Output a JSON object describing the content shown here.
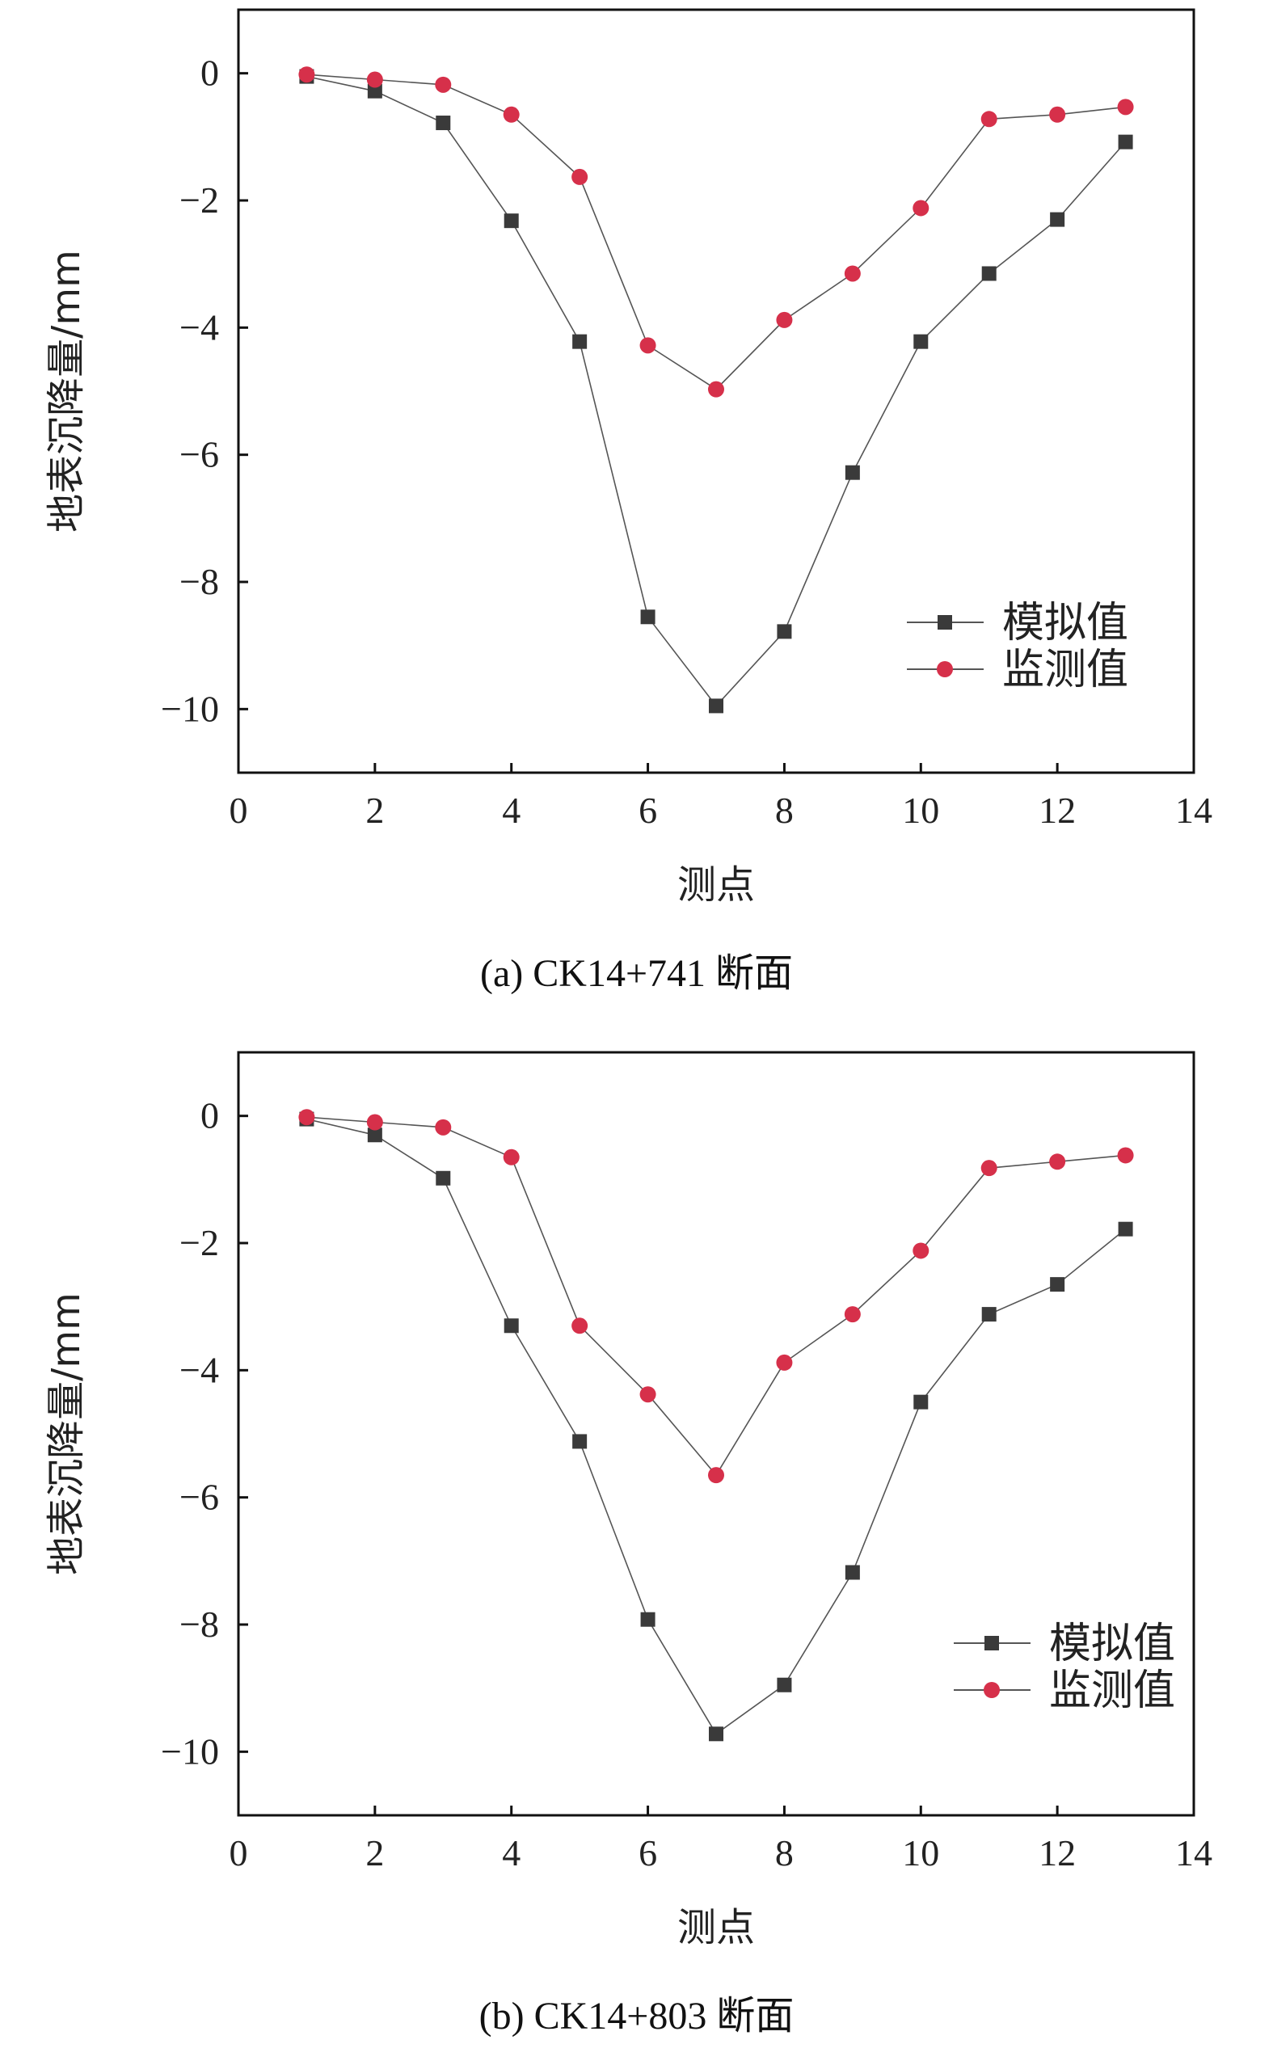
{
  "chart_data": [
    {
      "type": "line",
      "caption": "(a) CK14+741 断面",
      "xlabel": "测点",
      "ylabel": "地表沉降量/mm",
      "xlim": [
        0,
        14
      ],
      "ylim": [
        -11,
        1
      ],
      "xticks": [
        0,
        2,
        4,
        6,
        8,
        10,
        12,
        14
      ],
      "yticks": [
        0,
        -2,
        -4,
        -6,
        -8,
        -10
      ],
      "ytick_labels": [
        "0",
        "−2",
        "−4",
        "−6",
        "−8",
        "−10"
      ],
      "grid": false,
      "legend_position": "bottom-right",
      "x": [
        1,
        2,
        3,
        4,
        5,
        6,
        7,
        8,
        9,
        10,
        11,
        12,
        13
      ],
      "series": [
        {
          "name": "模拟值",
          "marker": "square",
          "color": "#3a3a3a",
          "values": [
            -0.05,
            -0.28,
            -0.78,
            -2.32,
            -4.22,
            -8.55,
            -9.95,
            -8.78,
            -6.28,
            -4.22,
            -3.15,
            -2.3,
            -1.08
          ]
        },
        {
          "name": "监测值",
          "marker": "circle",
          "color": "#d6304a",
          "values": [
            -0.02,
            -0.1,
            -0.18,
            -0.65,
            -1.63,
            -4.28,
            -4.97,
            -3.88,
            -3.15,
            -2.12,
            -0.72,
            -0.65,
            -0.53
          ]
        }
      ]
    },
    {
      "type": "line",
      "caption": "(b) CK14+803 断面",
      "xlabel": "测点",
      "ylabel": "地表沉降量/mm",
      "xlim": [
        0,
        14
      ],
      "ylim": [
        -11,
        1
      ],
      "xticks": [
        0,
        2,
        4,
        6,
        8,
        10,
        12,
        14
      ],
      "yticks": [
        0,
        -2,
        -4,
        -6,
        -8,
        -10
      ],
      "ytick_labels": [
        "0",
        "−2",
        "−4",
        "−6",
        "−8",
        "−10"
      ],
      "grid": false,
      "legend_position": "bottom-right",
      "x": [
        1,
        2,
        3,
        4,
        5,
        6,
        7,
        8,
        9,
        10,
        11,
        12,
        13
      ],
      "series": [
        {
          "name": "模拟值",
          "marker": "square",
          "color": "#3a3a3a",
          "values": [
            -0.05,
            -0.3,
            -0.98,
            -3.3,
            -5.12,
            -7.92,
            -9.72,
            -8.95,
            -7.18,
            -4.5,
            -3.12,
            -2.65,
            -1.78
          ]
        },
        {
          "name": "监测值",
          "marker": "circle",
          "color": "#d6304a",
          "values": [
            -0.02,
            -0.1,
            -0.18,
            -0.65,
            -3.3,
            -4.38,
            -5.65,
            -3.88,
            -3.12,
            -2.12,
            -0.82,
            -0.72,
            -0.62
          ]
        }
      ]
    }
  ]
}
